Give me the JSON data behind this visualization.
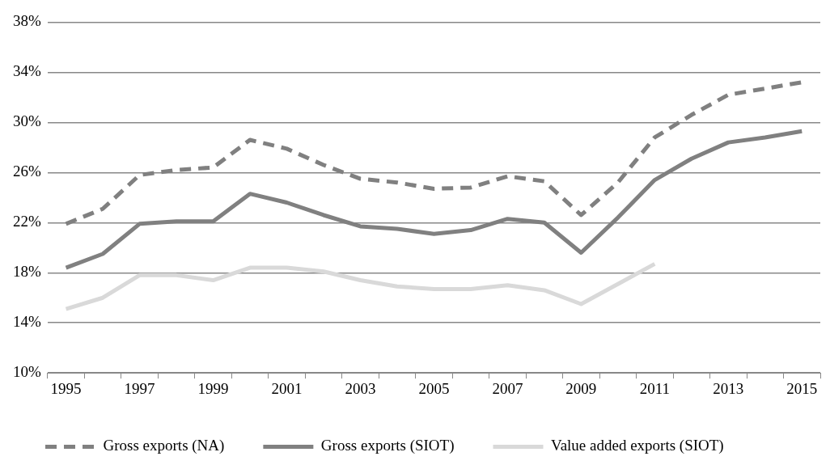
{
  "chart_data": {
    "type": "line",
    "categories": [
      "1995",
      null,
      "1997",
      null,
      "1999",
      null,
      "2001",
      null,
      "2003",
      null,
      "2005",
      null,
      "2007",
      null,
      "2009",
      null,
      "2011",
      null,
      "2013",
      null,
      "2015"
    ],
    "series": [
      {
        "name": "Gross exports (NA)",
        "color": "#808080",
        "line_style": "dashed",
        "values": [
          21.9,
          23.1,
          25.8,
          26.2,
          26.4,
          28.6,
          27.9,
          26.6,
          25.5,
          25.2,
          24.7,
          24.8,
          25.7,
          25.3,
          22.6,
          25.2,
          28.8,
          30.6,
          32.2,
          32.7,
          33.2
        ]
      },
      {
        "name": "Gross exports (SIOT)",
        "color": "#808080",
        "line_style": "solid",
        "values": [
          18.4,
          19.5,
          21.9,
          22.1,
          22.1,
          24.3,
          23.6,
          22.6,
          21.7,
          21.5,
          21.1,
          21.4,
          22.3,
          22.0,
          19.6,
          22.4,
          25.4,
          27.1,
          28.4,
          28.8,
          29.3
        ]
      },
      {
        "name": "Value added exports (SIOT)",
        "color": "#d9d9d9",
        "line_style": "solid",
        "values": [
          15.1,
          16.0,
          17.8,
          17.8,
          17.4,
          18.4,
          18.4,
          18.1,
          17.4,
          16.9,
          16.7,
          16.7,
          17.0,
          16.6,
          15.5,
          17.1,
          18.7,
          null,
          null,
          null,
          null
        ]
      }
    ],
    "ylim": [
      10,
      38
    ],
    "yticks": [
      {
        "value": 10,
        "label": "10%"
      },
      {
        "value": 14,
        "label": "14%"
      },
      {
        "value": 18,
        "label": "18%"
      },
      {
        "value": 22,
        "label": "22%"
      },
      {
        "value": 26,
        "label": "26%"
      },
      {
        "value": 30,
        "label": "30%"
      },
      {
        "value": 34,
        "label": "34%"
      },
      {
        "value": 38,
        "label": "38%"
      }
    ],
    "grid": "y",
    "legend": "bottom",
    "marker": "none"
  }
}
